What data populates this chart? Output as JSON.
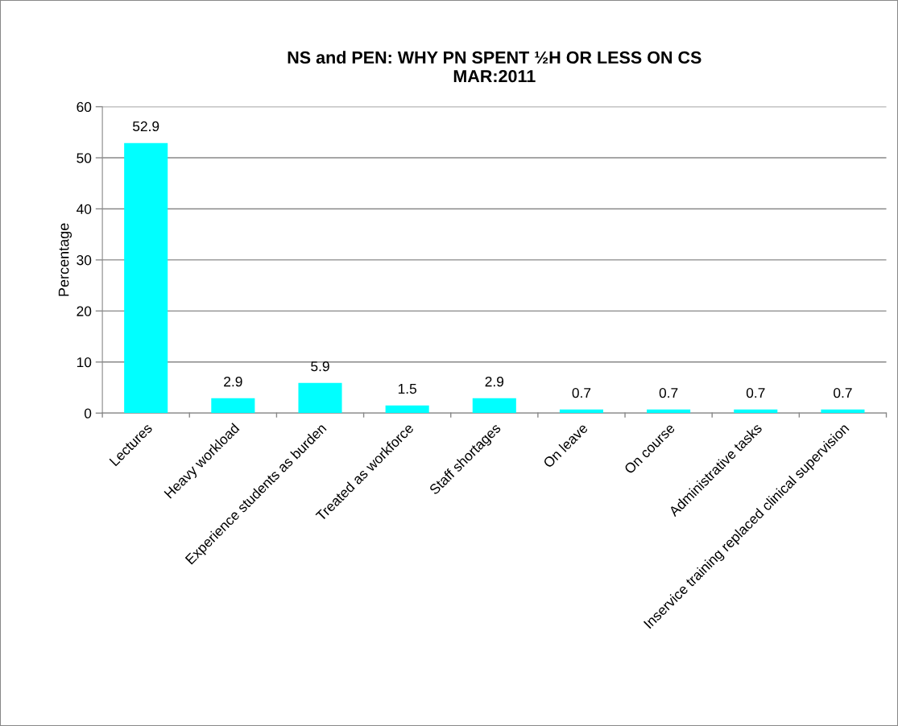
{
  "chart_data": {
    "type": "bar",
    "title": "NS and PEN: WHY PN SPENT ½H OR LESS ON CS\nMAR:2011",
    "ylabel": "Percentage",
    "categories": [
      "Lectures",
      "Heavy workload",
      "Experience students as burden",
      "Treated as workforce",
      "Staff shortages",
      "On leave",
      "On course",
      "Administrative tasks",
      "Inservice training replaced clinical supervision"
    ],
    "values": [
      52.9,
      2.9,
      5.9,
      1.5,
      2.9,
      0.7,
      0.7,
      0.7,
      0.7
    ],
    "color": "#00ffff",
    "ylim": [
      0,
      60
    ],
    "yticks": [
      0,
      10,
      20,
      30,
      40,
      50,
      60
    ],
    "grid": "y",
    "data_labels": true,
    "legend": false
  }
}
